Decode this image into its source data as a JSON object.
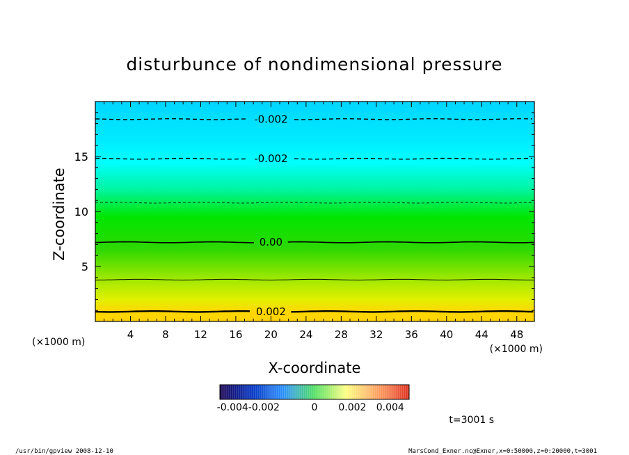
{
  "chart_data": {
    "type": "heatmap",
    "title": "disturbunce of nondimensional pressure",
    "xlabel": "X-coordinate",
    "ylabel": "Z-coordinate",
    "xunit_left": "(×1000 m)",
    "xunit_right": "(×1000 m)",
    "xlim": [
      0,
      50
    ],
    "ylim": [
      0,
      20
    ],
    "x_ticks": [
      4,
      8,
      12,
      16,
      20,
      24,
      28,
      32,
      36,
      40,
      44,
      48
    ],
    "y_ticks": [
      5,
      10,
      15
    ],
    "color_profile": [
      {
        "z": 0,
        "color": "#ffd400"
      },
      {
        "z": 0.9,
        "color": "#ffd700"
      },
      {
        "z": 2,
        "color": "#e0f000"
      },
      {
        "z": 4,
        "color": "#9ae800"
      },
      {
        "z": 6.5,
        "color": "#30d800"
      },
      {
        "z": 9.5,
        "color": "#00e600"
      },
      {
        "z": 12,
        "color": "#00f5a0"
      },
      {
        "z": 14.5,
        "color": "#00ffff"
      },
      {
        "z": 16.5,
        "color": "#00eaff"
      },
      {
        "z": 20,
        "color": "#00d6ff"
      }
    ],
    "contours": [
      {
        "z": 0.9,
        "style": "solid",
        "width": 2.4,
        "label": "0.002",
        "label_x": 20
      },
      {
        "z": 3.8,
        "style": "solid",
        "width": 1,
        "label": "",
        "label_x": 0
      },
      {
        "z": 7.2,
        "style": "solid",
        "width": 1.6,
        "label": "0.00",
        "label_x": 20
      },
      {
        "z": 10.8,
        "style": "dashed",
        "width": 0.8,
        "label": "",
        "label_x": 0
      },
      {
        "z": 14.8,
        "style": "dashed",
        "width": 1.4,
        "label": "-0.002",
        "label_x": 20
      },
      {
        "z": 18.4,
        "style": "dashed",
        "width": 1.4,
        "label": "-0.002",
        "label_x": 20
      }
    ],
    "colorbar": {
      "range": [
        -0.005,
        0.005
      ],
      "stops": [
        "#1a0050",
        "#0030c0",
        "#2a90ff",
        "#50e060",
        "#ffff80",
        "#ffa060",
        "#e03020"
      ],
      "tick_labels": [
        {
          "value": -0.0035,
          "text": "-0.004-0.002"
        },
        {
          "value": 0,
          "text": "0"
        },
        {
          "value": 0.002,
          "text": "0.002"
        },
        {
          "value": 0.004,
          "text": "0.004"
        }
      ]
    },
    "time_label": "t=3001 s"
  },
  "footer": {
    "left": "/usr/bin/gpview   2008-12-10",
    "right": "MarsCond_Exner.nc@Exner,x=0:50000,z=0:20000,t=3001"
  }
}
